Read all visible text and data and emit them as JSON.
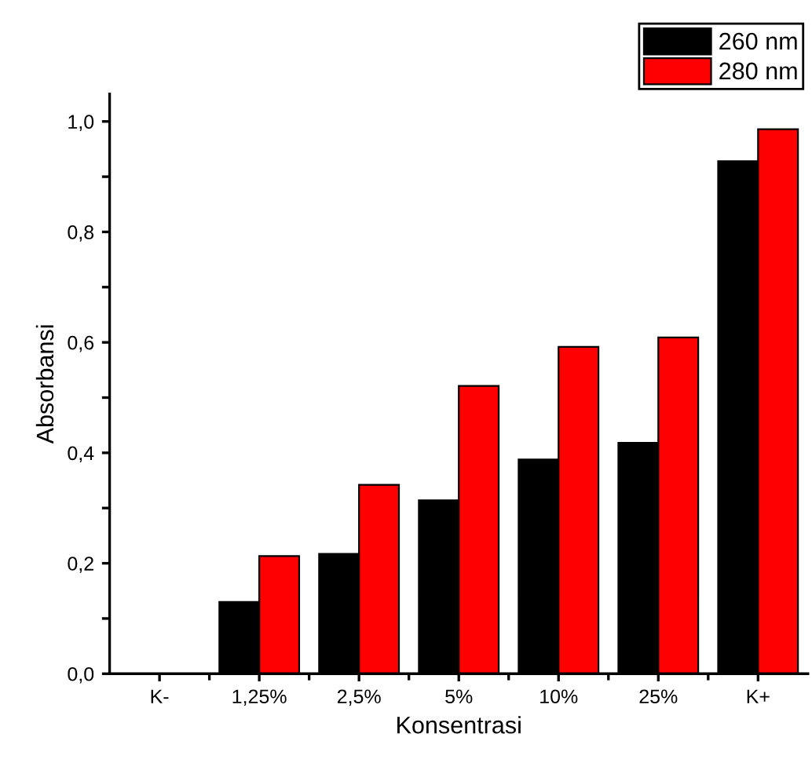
{
  "chart_data": {
    "type": "bar",
    "xlabel": "Konsentrasi",
    "ylabel": "Absorbansi",
    "categories": [
      "K-",
      "1,25%",
      "2,5%",
      "5%",
      "10%",
      "25%",
      "K+"
    ],
    "series": [
      {
        "name": "260 nm",
        "color": "#000000",
        "values": [
          null,
          0.13,
          0.217,
          0.314,
          0.388,
          0.418,
          0.928
        ]
      },
      {
        "name": "280 nm",
        "color": "#ff0000",
        "values": [
          null,
          0.213,
          0.342,
          0.521,
          0.592,
          0.609,
          0.986
        ]
      }
    ],
    "ylim": [
      0,
      1.05
    ],
    "yticks": [
      {
        "value": 0,
        "label": "0,0"
      },
      {
        "value": 0.1,
        "label": null
      },
      {
        "value": 0.2,
        "label": "0,2"
      },
      {
        "value": 0.3,
        "label": null
      },
      {
        "value": 0.4,
        "label": "0,4"
      },
      {
        "value": 0.5,
        "label": null
      },
      {
        "value": 0.6,
        "label": "0,6"
      },
      {
        "value": 0.7,
        "label": null
      },
      {
        "value": 0.8,
        "label": "0,8"
      },
      {
        "value": 0.9,
        "label": null
      },
      {
        "value": 1.0,
        "label": "1,0"
      }
    ],
    "grid": false,
    "legend": "top right"
  }
}
